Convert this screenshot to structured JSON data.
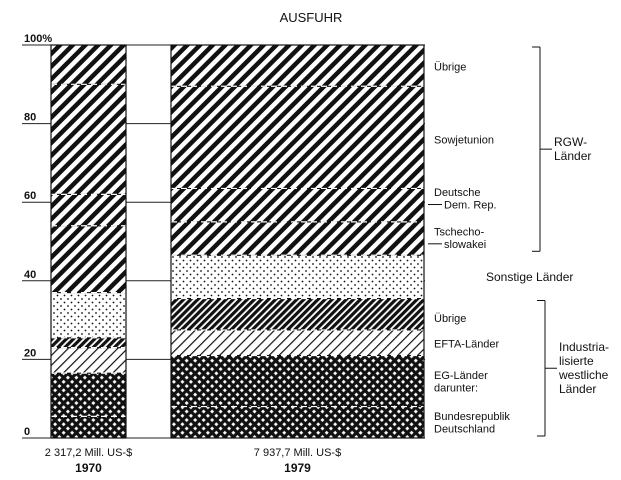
{
  "chart_data": {
    "type": "bar",
    "stacked": true,
    "title": "AUSFUHR",
    "ylim": [
      0,
      100
    ],
    "y_ticks": [
      {
        "value": 100,
        "label": "100%"
      },
      {
        "value": 80,
        "label": "80"
      },
      {
        "value": 60,
        "label": "60"
      },
      {
        "value": 40,
        "label": "40"
      },
      {
        "value": 20,
        "label": "20"
      },
      {
        "value": 0,
        "label": "0"
      }
    ],
    "grid": true,
    "bars": [
      {
        "year": "1970",
        "total": "2 317,2 Mill. US-$",
        "segments": [
          {
            "value": 5.5,
            "pattern": "crosshatch"
          },
          {
            "value": 11,
            "pattern": "crosshatch"
          },
          {
            "value": 6.5,
            "pattern": "light-hatch"
          },
          {
            "value": 2.5,
            "pattern": "dense-hatch"
          },
          {
            "value": 11.5,
            "pattern": "dots"
          },
          {
            "value": 17,
            "pattern": "hatch"
          },
          {
            "value": 8,
            "pattern": "hatch"
          },
          {
            "value": 28,
            "pattern": "hatch"
          },
          {
            "value": 10,
            "pattern": "hatch"
          }
        ]
      },
      {
        "year": "1979",
        "total": "7 937,7 Mill. US-$",
        "segments": [
          {
            "label": "Bundesrepublik Deutschland",
            "value": 8,
            "pattern": "crosshatch"
          },
          {
            "label": "EG-Länder darunter:",
            "value": 13,
            "pattern": "crosshatch"
          },
          {
            "label": "EFTA-Länder",
            "value": 6.5,
            "pattern": "light-hatch"
          },
          {
            "label": "Übrige",
            "value": 8,
            "pattern": "dense-hatch"
          },
          {
            "label": "Sonstige Länder",
            "value": 11,
            "pattern": "dots"
          },
          {
            "label": "Tschechoslowakei",
            "value": 8.5,
            "pattern": "hatch"
          },
          {
            "label": "Deutsche Dem. Rep.",
            "value": 8.5,
            "pattern": "hatch"
          },
          {
            "label": "Sowjetunion",
            "value": 26,
            "pattern": "hatch"
          },
          {
            "label": "Übrige",
            "value": 10.5,
            "pattern": "hatch"
          }
        ]
      }
    ],
    "legend": [
      {
        "lines": [
          "Übrige"
        ],
        "value": 94.5,
        "arrow": false
      },
      {
        "lines": [
          "Sowjetunion"
        ],
        "value": 76,
        "arrow": false
      },
      {
        "lines": [
          "Deutsche",
          "Dem. Rep."
        ],
        "value": 61,
        "arrow": true
      },
      {
        "lines": [
          "Tschecho-",
          "slowakei"
        ],
        "value": 51,
        "arrow": true
      },
      {
        "lines": [
          "Übrige"
        ],
        "value": 30.5,
        "arrow": false
      },
      {
        "lines": [
          "EFTA-Länder"
        ],
        "value": 24,
        "arrow": false
      },
      {
        "lines": [
          "EG-Länder",
          "darunter:"
        ],
        "value": 14.5,
        "arrow": false
      },
      {
        "lines": [
          "Bundesrepublik",
          "Deutschland"
        ],
        "value": 4,
        "arrow": false
      }
    ],
    "groups": [
      {
        "lines": [
          "RGW-",
          "Länder"
        ],
        "from": 47,
        "to": 100
      },
      {
        "lines": [
          "Sonstige Länder"
        ],
        "value": 41
      },
      {
        "lines": [
          "Industria-",
          "lisierte",
          "westliche",
          "Länder"
        ],
        "from": 0,
        "to": 35.5
      }
    ]
  }
}
